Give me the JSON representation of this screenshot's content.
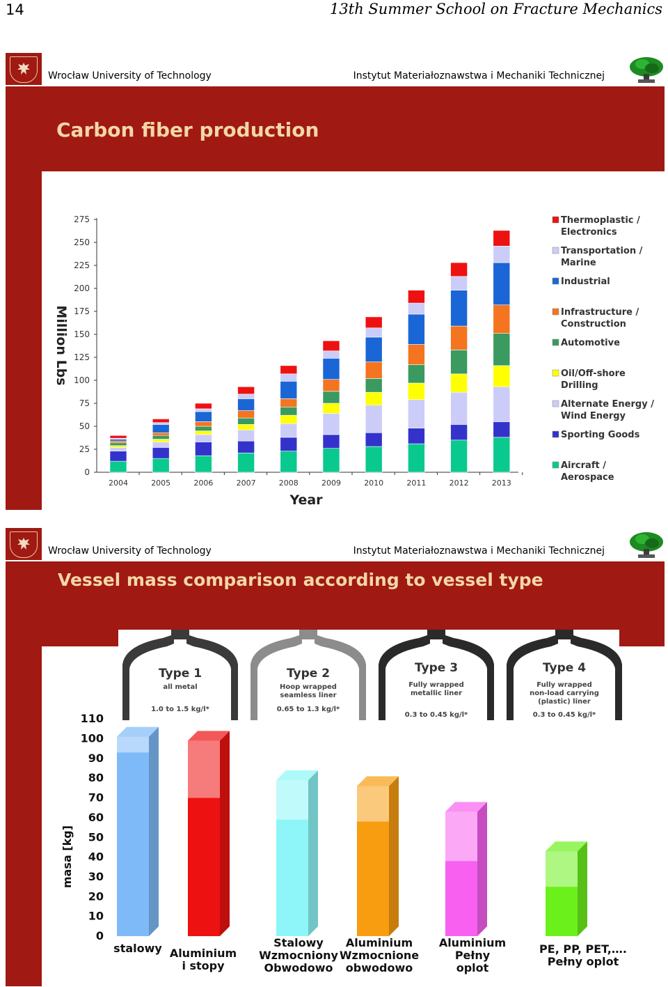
{
  "page_header": {
    "number": "14",
    "title": "13th Summer School on Fracture Mechanics"
  },
  "slide_header": {
    "university": "Wrocław University of Technology",
    "institute": "Instytut  Materiałoznawstwa i Mechaniki Technicznej"
  },
  "colors": {
    "brand_red": "#a01912",
    "title_text": "#f3d7a8"
  },
  "slide1": {
    "title": "Carbon fiber production"
  },
  "slide2": {
    "title": "Vessel mass comparison according to vessel type",
    "vessel_types": [
      {
        "name": "Type 1",
        "desc": [
          "all metal"
        ],
        "range": "1.0 to 1.5 kg/l*"
      },
      {
        "name": "Type 2",
        "desc": [
          "Hoop wrapped",
          "seamless liner"
        ],
        "range": "0.65 to 1.3 kg/l*"
      },
      {
        "name": "Type 3",
        "desc": [
          "Fully wrapped",
          "metallic liner"
        ],
        "range": "0.3 to 0.45 kg/l*"
      },
      {
        "name": "Type 4",
        "desc": [
          "Fully wrapped",
          "non-load carrying",
          "(plastic) liner"
        ],
        "range": "0.3 to 0.45 kg/l*"
      }
    ]
  },
  "chart_data": [
    {
      "type": "bar",
      "stacked": true,
      "xlabel": "Year",
      "ylabel": "Million Lbs",
      "ylim": [
        0,
        275
      ],
      "yticks": [
        0,
        25,
        50,
        75,
        100,
        125,
        150,
        175,
        200,
        225,
        250,
        275
      ],
      "categories": [
        "2004",
        "2005",
        "2006",
        "2007",
        "2008",
        "2009",
        "2010",
        "2011",
        "2012",
        "2013"
      ],
      "legend_position": "right",
      "series": [
        {
          "name": "Aircraft / Aerospace",
          "color": "#0ac98f",
          "values": [
            12,
            15,
            18,
            21,
            23,
            26,
            28,
            31,
            35,
            38
          ]
        },
        {
          "name": "Sporting Goods",
          "color": "#3333cc",
          "values": [
            11,
            12,
            15,
            13,
            15,
            15,
            15,
            17,
            17,
            17
          ]
        },
        {
          "name": "Alternate Energy / Wind Energy",
          "color": "#ccccf8",
          "values": [
            4,
            6,
            8,
            12,
            15,
            23,
            30,
            31,
            35,
            38
          ]
        },
        {
          "name": "Oil/Off-shore Drilling",
          "color": "#ffff00",
          "values": [
            2,
            3,
            4,
            6,
            9,
            11,
            14,
            18,
            20,
            23
          ]
        },
        {
          "name": "Automotive",
          "color": "#3a9a60",
          "values": [
            3,
            4,
            5,
            7,
            9,
            13,
            15,
            20,
            26,
            35
          ]
        },
        {
          "name": "Infrastructure / Construction",
          "color": "#f47420",
          "values": [
            2,
            3,
            5,
            8,
            9,
            13,
            18,
            22,
            26,
            31
          ]
        },
        {
          "name": "Industrial",
          "color": "#1a66d6",
          "values": [
            2,
            9,
            11,
            13,
            19,
            23,
            27,
            33,
            39,
            46
          ]
        },
        {
          "name": "Transportation / Marine",
          "color": "#ccccf8",
          "values": [
            1,
            2,
            3,
            5,
            8,
            8,
            10,
            12,
            15,
            18
          ]
        },
        {
          "name": "Thermoplastic / Electronics",
          "color": "#ee1111",
          "values": [
            3,
            4,
            6,
            8,
            9,
            11,
            12,
            14,
            15,
            17
          ]
        }
      ]
    },
    {
      "type": "bar",
      "ylabel": "masa [kg]",
      "ylim": [
        0,
        110
      ],
      "yticks": [
        0,
        10,
        20,
        30,
        40,
        50,
        60,
        70,
        80,
        90,
        100,
        110
      ],
      "categories": [
        [
          "stalowy"
        ],
        [
          "Aluminium",
          "i stopy"
        ],
        [
          "Stalowy",
          "Wzmocniony",
          "Obwodowo"
        ],
        [
          "Aluminium",
          "Wzmocnione",
          "obwodowo"
        ],
        [
          "Aluminium",
          "Pełny",
          "oplot"
        ],
        [
          "PE, PP, PET,….",
          "Pełny oplot"
        ]
      ],
      "series": [
        {
          "name": "",
          "values": [
            101,
            99,
            79,
            76,
            63,
            43
          ],
          "highlight_from": [
            101,
            99,
            79,
            76,
            63,
            43
          ],
          "highlight_to": [
            93,
            70,
            59,
            58,
            38,
            25
          ],
          "colors": [
            "#7ebaf8",
            "#ee1111",
            "#8ef6f8",
            "#f89c10",
            "#f860f0",
            "#6cf01c"
          ]
        }
      ]
    }
  ]
}
